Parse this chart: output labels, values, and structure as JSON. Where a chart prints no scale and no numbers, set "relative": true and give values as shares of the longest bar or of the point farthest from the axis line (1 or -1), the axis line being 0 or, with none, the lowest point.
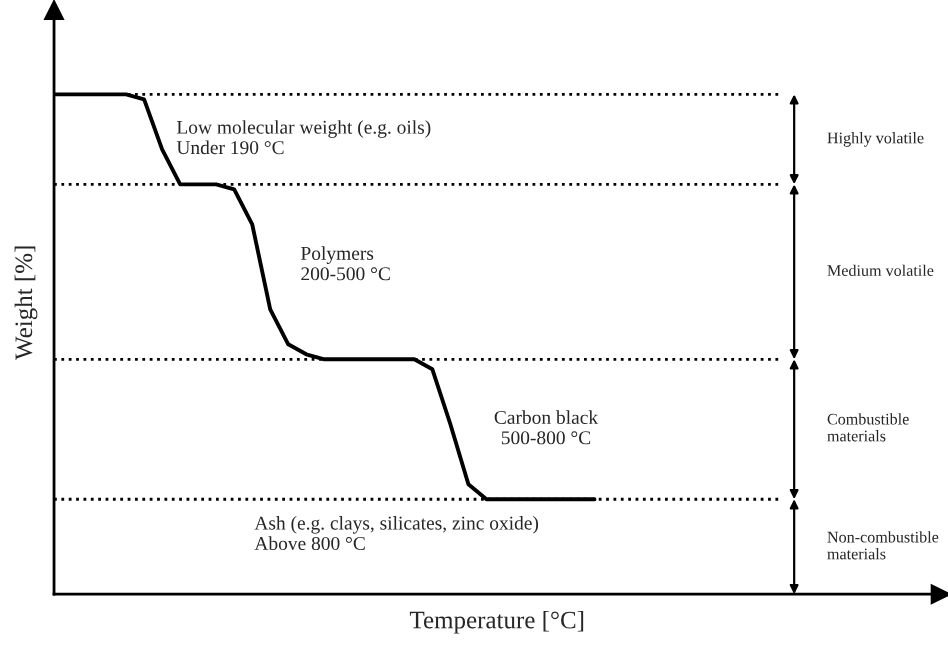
{
  "chart_data": {
    "type": "line",
    "relative": true,
    "xlabel": "Temperature [°C]",
    "ylabel": "Weight [%]",
    "categories": [
      null,
      null,
      null,
      null,
      null,
      null,
      null,
      null,
      null,
      null,
      null,
      null,
      null,
      null,
      null,
      null,
      null,
      null,
      null,
      null,
      null,
      null,
      null,
      null,
      null,
      null,
      null,
      null,
      null,
      null,
      null
    ],
    "series": [
      {
        "color": "#000000",
        "values": [
          1,
          1,
          1,
          1,
          1,
          0.99,
          0.89,
          0.82,
          0.82,
          0.82,
          0.81,
          0.74,
          0.57,
          0.5,
          0.48,
          0.47,
          0.47,
          0.47,
          0.47,
          0.47,
          0.47,
          0.45,
          0.34,
          0.22,
          0.19,
          0.19,
          0.19,
          0.19,
          0.19,
          0.19,
          0.19
        ]
      }
    ],
    "ref_lines": [
      {
        "axis": "y",
        "value": 1,
        "line_style": "dotted",
        "color": "#000000"
      },
      {
        "axis": "y",
        "value": 0.82,
        "line_style": "dotted",
        "color": "#000000"
      },
      {
        "axis": "y",
        "value": 0.47,
        "line_style": "dotted",
        "color": "#000000"
      },
      {
        "axis": "y",
        "value": 0.19,
        "line_style": "dotted",
        "color": "#000000"
      }
    ],
    "annotations": [
      "Highly volatile",
      "Medium volatile",
      "Combustible\nmaterials",
      "Non-combustible\nmaterials",
      "Low molecular weight (e.g. oils)\nUnder 190 °C",
      "Polymers\n200-500 °C",
      "Carbon black\n500-800 °C",
      "Ash (e.g. clays, silicates, zinc oxide)\nAbove 800 °C"
    ],
    "line_style": "solid",
    "marker": "none",
    "legend": false
  }
}
